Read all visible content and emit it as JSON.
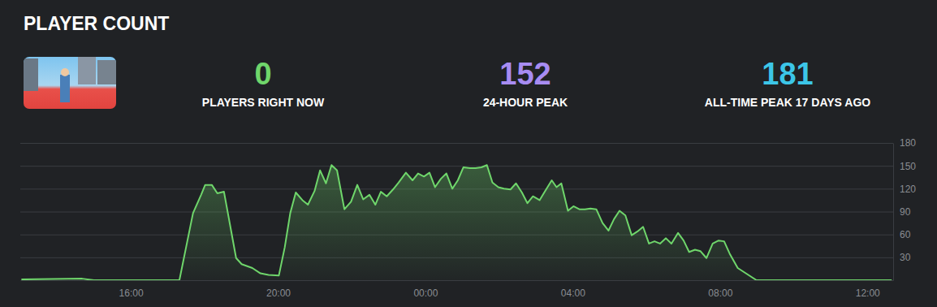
{
  "header": {
    "title": "PLAYER COUNT",
    "stats": [
      {
        "value": 0,
        "label": "PLAYERS RIGHT NOW",
        "color": "#6fd66b"
      },
      {
        "value": 152,
        "label": "24-HOUR PEAK",
        "color": "#a78cf2"
      },
      {
        "value": 181,
        "label": "ALL-TIME PEAK 17 DAYS AGO",
        "color": "#3cc6e8"
      }
    ]
  },
  "chart_data": {
    "type": "area",
    "color": "#6fd66b",
    "grid": true,
    "x": [
      13.03,
      14.68,
      15.0,
      17.32,
      17.69,
      17.91,
      18.02,
      18.2,
      18.35,
      18.53,
      18.86,
      19.01,
      19.3,
      19.52,
      19.74,
      20.02,
      20.18,
      20.33,
      20.48,
      20.66,
      20.81,
      20.99,
      21.14,
      21.3,
      21.45,
      21.6,
      21.8,
      21.98,
      22.15,
      22.31,
      22.48,
      22.64,
      22.79,
      22.95,
      23.12,
      23.27,
      23.47,
      23.65,
      23.8,
      23.96,
      24.11,
      24.26,
      24.42,
      24.57,
      24.73,
      24.88,
      25.03,
      25.21,
      25.36,
      25.52,
      25.67,
      25.82,
      25.98,
      26.13,
      26.31,
      26.46,
      26.62,
      26.77,
      26.92,
      27.1,
      27.25,
      27.43,
      27.56,
      27.69,
      27.87,
      28.02,
      28.18,
      28.33,
      28.48,
      28.64,
      28.81,
      28.97,
      29.12,
      29.27,
      29.43,
      29.6,
      29.76,
      29.91,
      30.07,
      30.22,
      30.37,
      30.53,
      30.68,
      30.86,
      31.01,
      31.16,
      31.32,
      31.47,
      31.63,
      31.8,
      31.96,
      32.11,
      32.26,
      32.48,
      32.99,
      36.66
    ],
    "values": [
      1,
      2,
      0,
      0,
      88,
      112,
      125,
      125,
      114,
      116,
      29,
      21,
      16,
      9,
      7,
      6,
      43,
      88,
      115,
      105,
      99,
      117,
      144,
      127,
      151,
      144,
      93,
      103,
      125,
      106,
      112,
      99,
      116,
      110,
      119,
      128,
      141,
      131,
      140,
      136,
      141,
      122,
      133,
      140,
      120,
      131,
      148,
      147,
      147,
      148,
      151,
      128,
      122,
      120,
      119,
      127,
      115,
      101,
      110,
      105,
      117,
      131,
      122,
      127,
      91,
      97,
      93,
      93,
      94,
      93,
      75,
      65,
      80,
      91,
      85,
      59,
      64,
      70,
      48,
      51,
      48,
      55,
      48,
      62,
      52,
      37,
      40,
      38,
      29,
      48,
      52,
      51,
      35,
      16,
      0,
      0
    ],
    "xlim": [
      13,
      36.7
    ],
    "xticks": [
      {
        "value": 16,
        "label": "16:00"
      },
      {
        "value": 20,
        "label": "20:00"
      },
      {
        "value": 24,
        "label": "00:00"
      },
      {
        "value": 28,
        "label": "04:00"
      },
      {
        "value": 32,
        "label": "08:00"
      },
      {
        "value": 36,
        "label": "12:00"
      }
    ],
    "ylim": [
      0,
      180
    ],
    "yticks": [
      30,
      60,
      90,
      120,
      150,
      180
    ]
  }
}
